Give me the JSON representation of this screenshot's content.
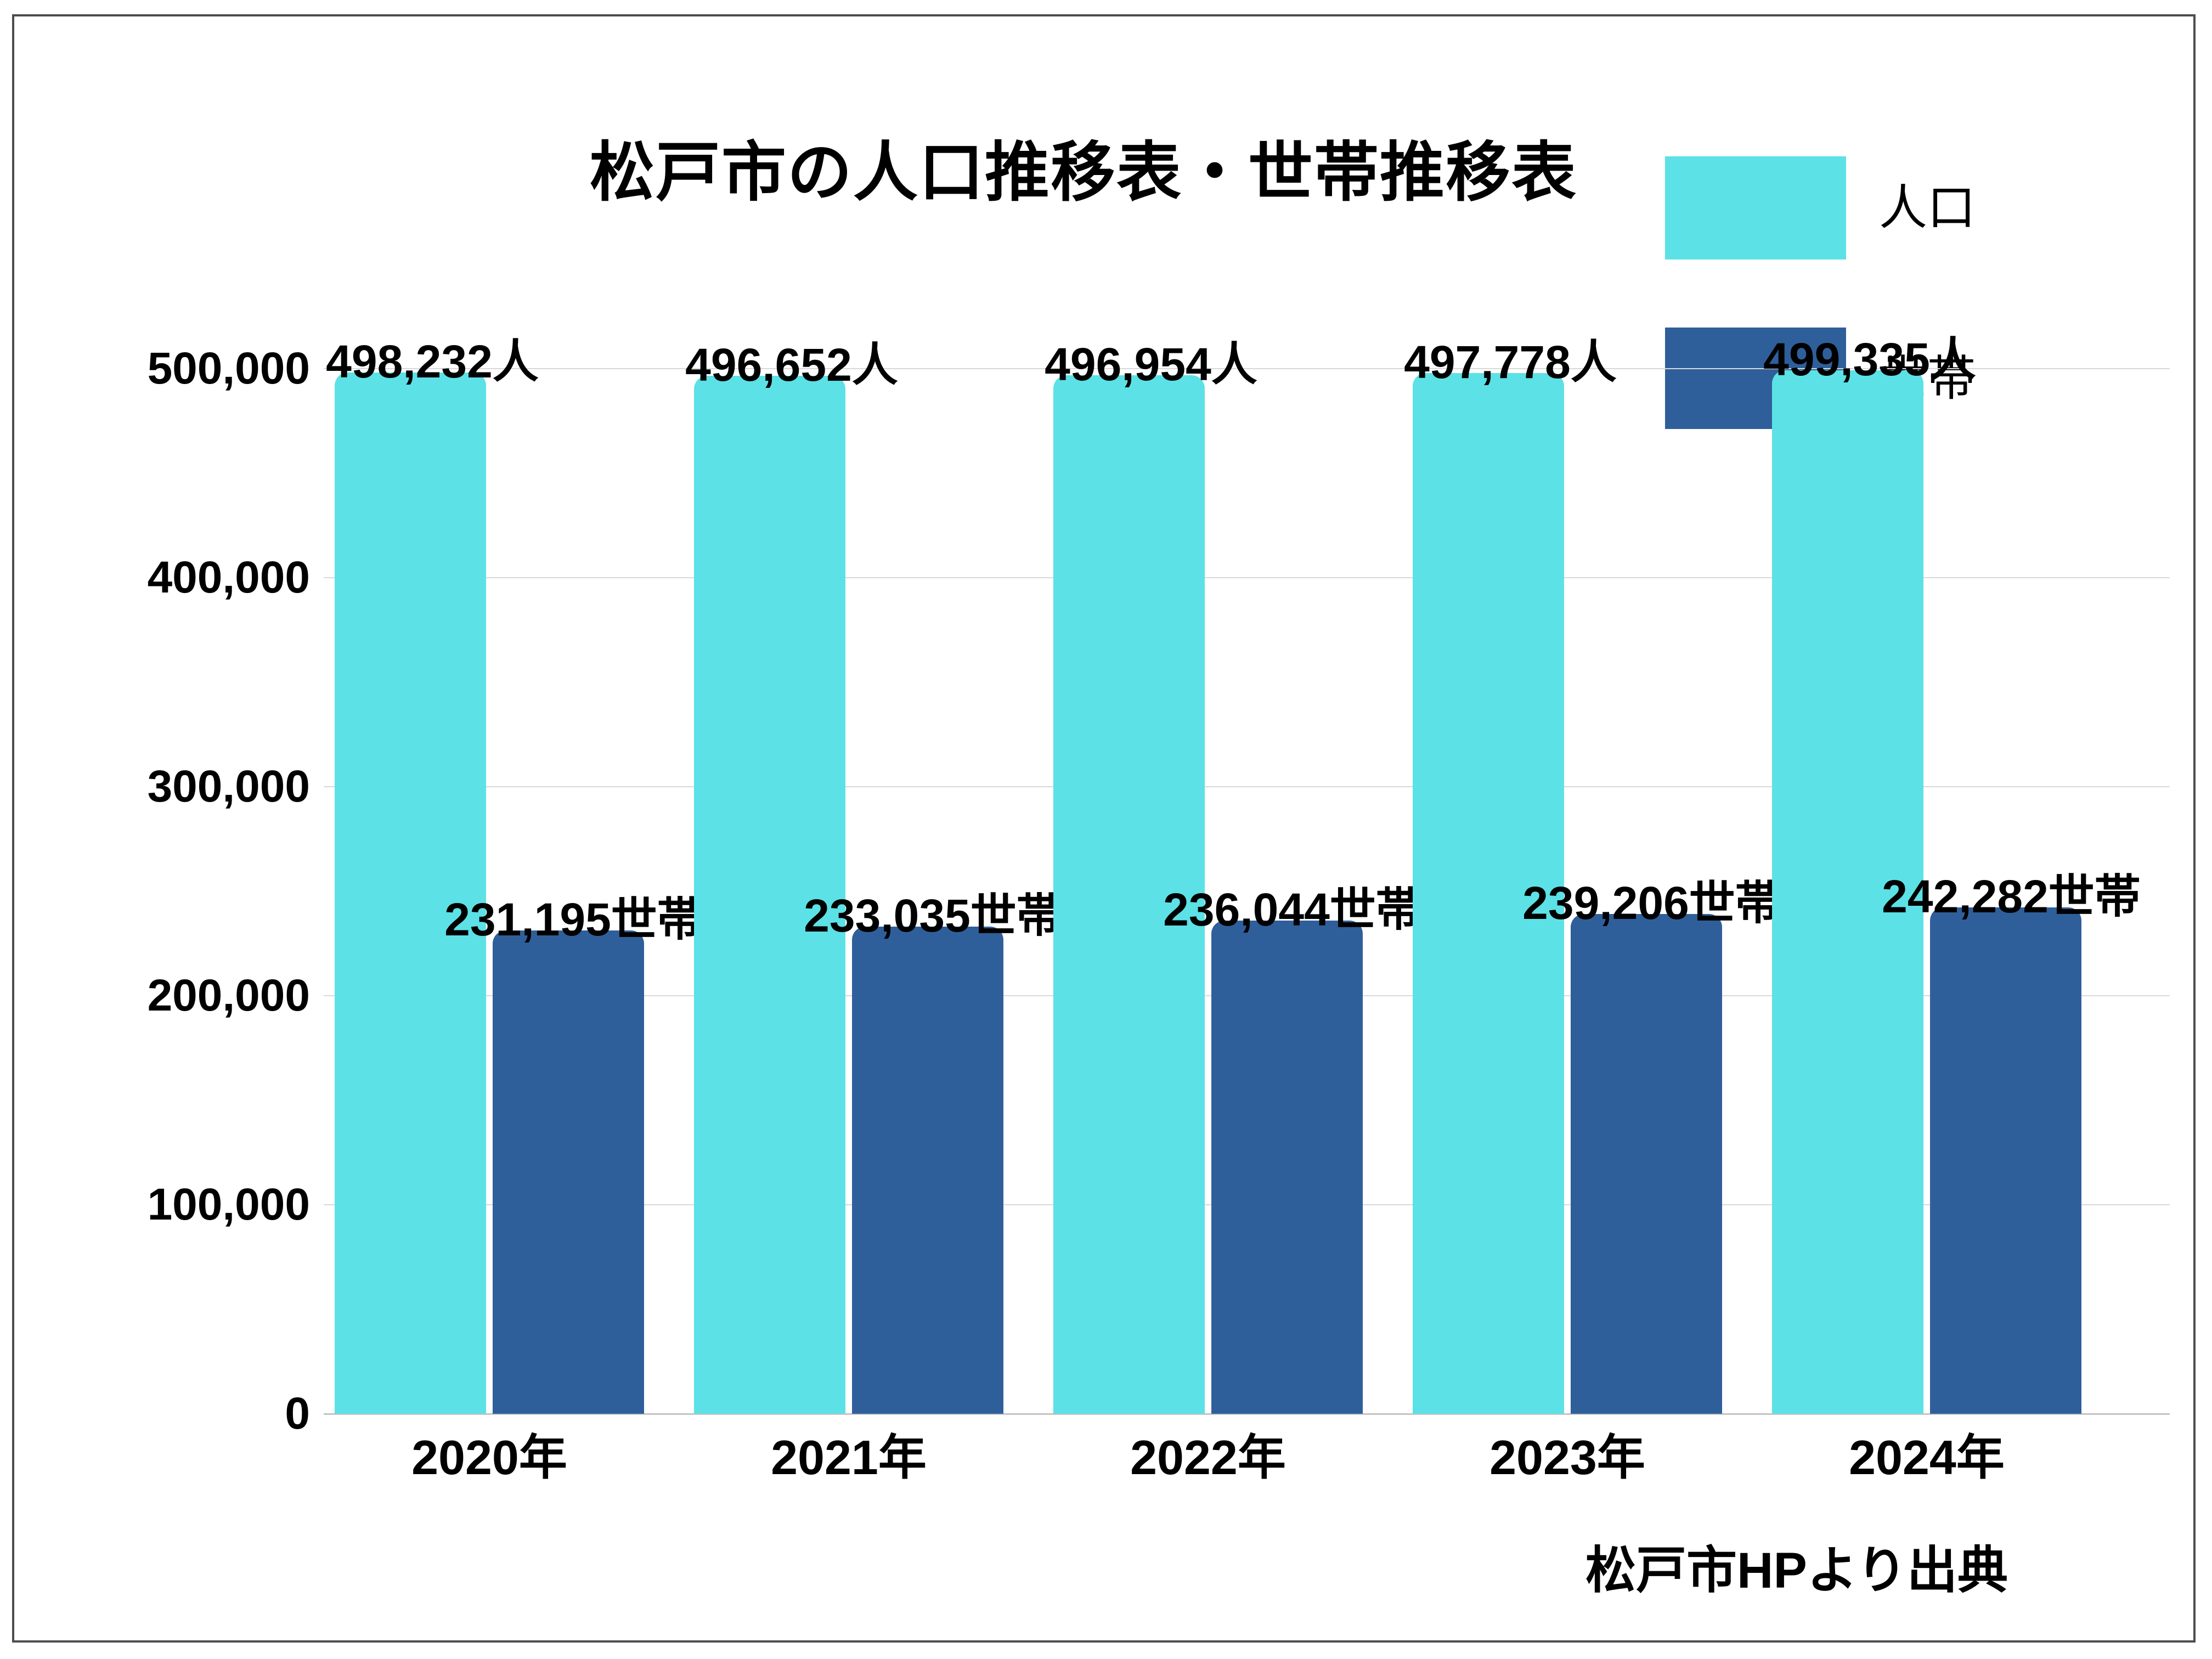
{
  "title": "松戸市の人口推移表・世帯推移表",
  "source": "松戸市HPより出典",
  "legend": [
    {
      "label": "人口",
      "color": "#5ce1e6"
    },
    {
      "label": "世帯",
      "color": "#2f5f9b"
    }
  ],
  "y_axis": {
    "tick_labels": [
      "500,000",
      "400,000",
      "300,000",
      "200,000",
      "100,000",
      "0"
    ]
  },
  "chart_data": {
    "type": "bar",
    "categories": [
      "2020年",
      "2021年",
      "2022年",
      "2023年",
      "2024年"
    ],
    "series": [
      {
        "name": "人口",
        "color": "#5ce1e6",
        "values": [
          498232,
          496652,
          496954,
          497778,
          499335
        ],
        "labels": [
          "498,232人",
          "496,652人",
          "496,954人",
          "497,778人",
          "499,335人"
        ]
      },
      {
        "name": "世帯",
        "color": "#2f5f9b",
        "values": [
          231195,
          233035,
          236044,
          239206,
          242282
        ],
        "labels": [
          "231,195世帯",
          "233,035世帯",
          "236,044世帯",
          "239,206世帯",
          "242,282世帯"
        ]
      }
    ],
    "title": "松戸市の人口推移表・世帯推移表",
    "xlabel": "",
    "ylabel": "",
    "ylim": [
      0,
      500000
    ],
    "y_ticks": [
      0,
      100000,
      200000,
      300000,
      400000,
      500000
    ],
    "grid": "horizontal",
    "legend_position": "top-right",
    "annotations": [
      "松戸市HPより出典"
    ]
  },
  "colors": {
    "population": "#5ce1e6",
    "household": "#2f5f9b",
    "gridline": "#d9d9d9",
    "axis_line": "#c4c4c4",
    "frame_border": "#4d4d4d",
    "text": "#000000",
    "background": "#ffffff"
  }
}
